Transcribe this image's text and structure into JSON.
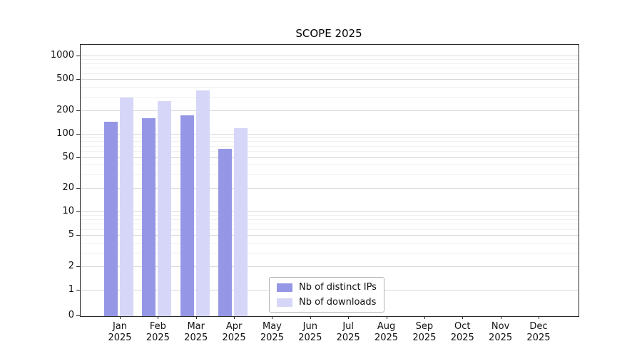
{
  "chart_data": {
    "type": "bar",
    "title": "SCOPE 2025",
    "yscale": "symlog",
    "ylim": [
      0,
      1400
    ],
    "yticks": [
      0,
      1,
      2,
      5,
      10,
      20,
      50,
      100,
      200,
      500,
      1000
    ],
    "grid": true,
    "legend_position": "lower center",
    "categories": [
      {
        "month": "Jan",
        "year": "2025"
      },
      {
        "month": "Feb",
        "year": "2025"
      },
      {
        "month": "Mar",
        "year": "2025"
      },
      {
        "month": "Apr",
        "year": "2025"
      },
      {
        "month": "May",
        "year": "2025"
      },
      {
        "month": "Jun",
        "year": "2025"
      },
      {
        "month": "Jul",
        "year": "2025"
      },
      {
        "month": "Aug",
        "year": "2025"
      },
      {
        "month": "Sep",
        "year": "2025"
      },
      {
        "month": "Oct",
        "year": "2025"
      },
      {
        "month": "Nov",
        "year": "2025"
      },
      {
        "month": "Dec",
        "year": "2025"
      }
    ],
    "series": [
      {
        "name": "Nb of distinct IPs",
        "color": "#9597e6",
        "values": [
          145,
          160,
          175,
          65,
          null,
          null,
          null,
          null,
          null,
          null,
          null,
          null
        ]
      },
      {
        "name": "Nb of downloads",
        "color": "#d6d7f8",
        "values": [
          300,
          270,
          370,
          120,
          null,
          null,
          null,
          null,
          null,
          null,
          null,
          null
        ]
      }
    ]
  }
}
